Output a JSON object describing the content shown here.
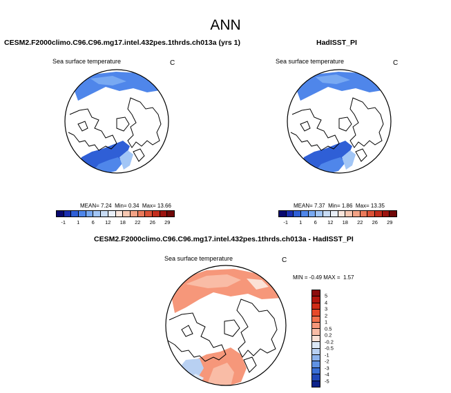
{
  "title": "ANN",
  "panels": {
    "left": {
      "title": "CESM2.F2000climo.C96.C96.mg17.intel.432pes.1thrds.ch013a (yrs 1)",
      "variable": "Sea surface temperature",
      "units": "C",
      "mean_label": "MEAN=",
      "mean": "7.24",
      "min_label": "Min=",
      "min": "0.34",
      "max_label": "Max=",
      "max": "13.66"
    },
    "right": {
      "title": "HadISST_PI",
      "variable": "Sea surface temperature",
      "units": "C",
      "mean_label": "MEAN=",
      "mean": "7.37",
      "min_label": "Min=",
      "min": "1.86",
      "max_label": "Max=",
      "max": "13.35"
    },
    "diff": {
      "title": "CESM2.F2000climo.C96.C96.mg17.intel.432pes.1thrds.ch013a - HadISST_PI",
      "variable": "Sea surface temperature",
      "units": "C",
      "min_label": "MIN =",
      "min": "-0.49",
      "max_label": "MAX =",
      "max": "1.57"
    }
  },
  "colorbars": {
    "sst": {
      "ticks": [
        "-1",
        "1",
        "6",
        "12",
        "18",
        "22",
        "26",
        "29"
      ],
      "colors": [
        "#08086e",
        "#1a2fb0",
        "#2f5fd6",
        "#4f86ea",
        "#78a9f2",
        "#a2c6f6",
        "#c8dcf5",
        "#e9eff8",
        "#fbe6dc",
        "#f8c8b2",
        "#f3a386",
        "#ea7a5b",
        "#db5237",
        "#c22d1d",
        "#9c130f",
        "#700808"
      ]
    },
    "diff": {
      "labels": [
        "5",
        "4",
        "3",
        "2",
        "1",
        "0.5",
        "0.2",
        "-0.2",
        "-0.5",
        "-1",
        "-2",
        "-3",
        "-4",
        "-5"
      ],
      "colors": [
        "#8c0d0d",
        "#b3170f",
        "#d02c17",
        "#e64a2a",
        "#f2714d",
        "#f6977a",
        "#f9bca6",
        "#fbe1d6",
        "#dce8f6",
        "#b8d0f2",
        "#8db3ec",
        "#6092e3",
        "#3a6fd6",
        "#2048b8",
        "#0d238a"
      ]
    }
  },
  "map_colors": {
    "land_fill": "#ffffff",
    "coast": "#000000",
    "sst_cold": "#4f86ea",
    "sst_cool": "#78a9f2",
    "sst_mid": "#2f5fd6",
    "sst_deep": "#1a2fb0",
    "sst_light": "#a2c6f6",
    "diff_warm": "#f6977a",
    "diff_light": "#f9bca6",
    "diff_pale": "#fbe1d6",
    "diff_cool": "#b8d0f2"
  }
}
